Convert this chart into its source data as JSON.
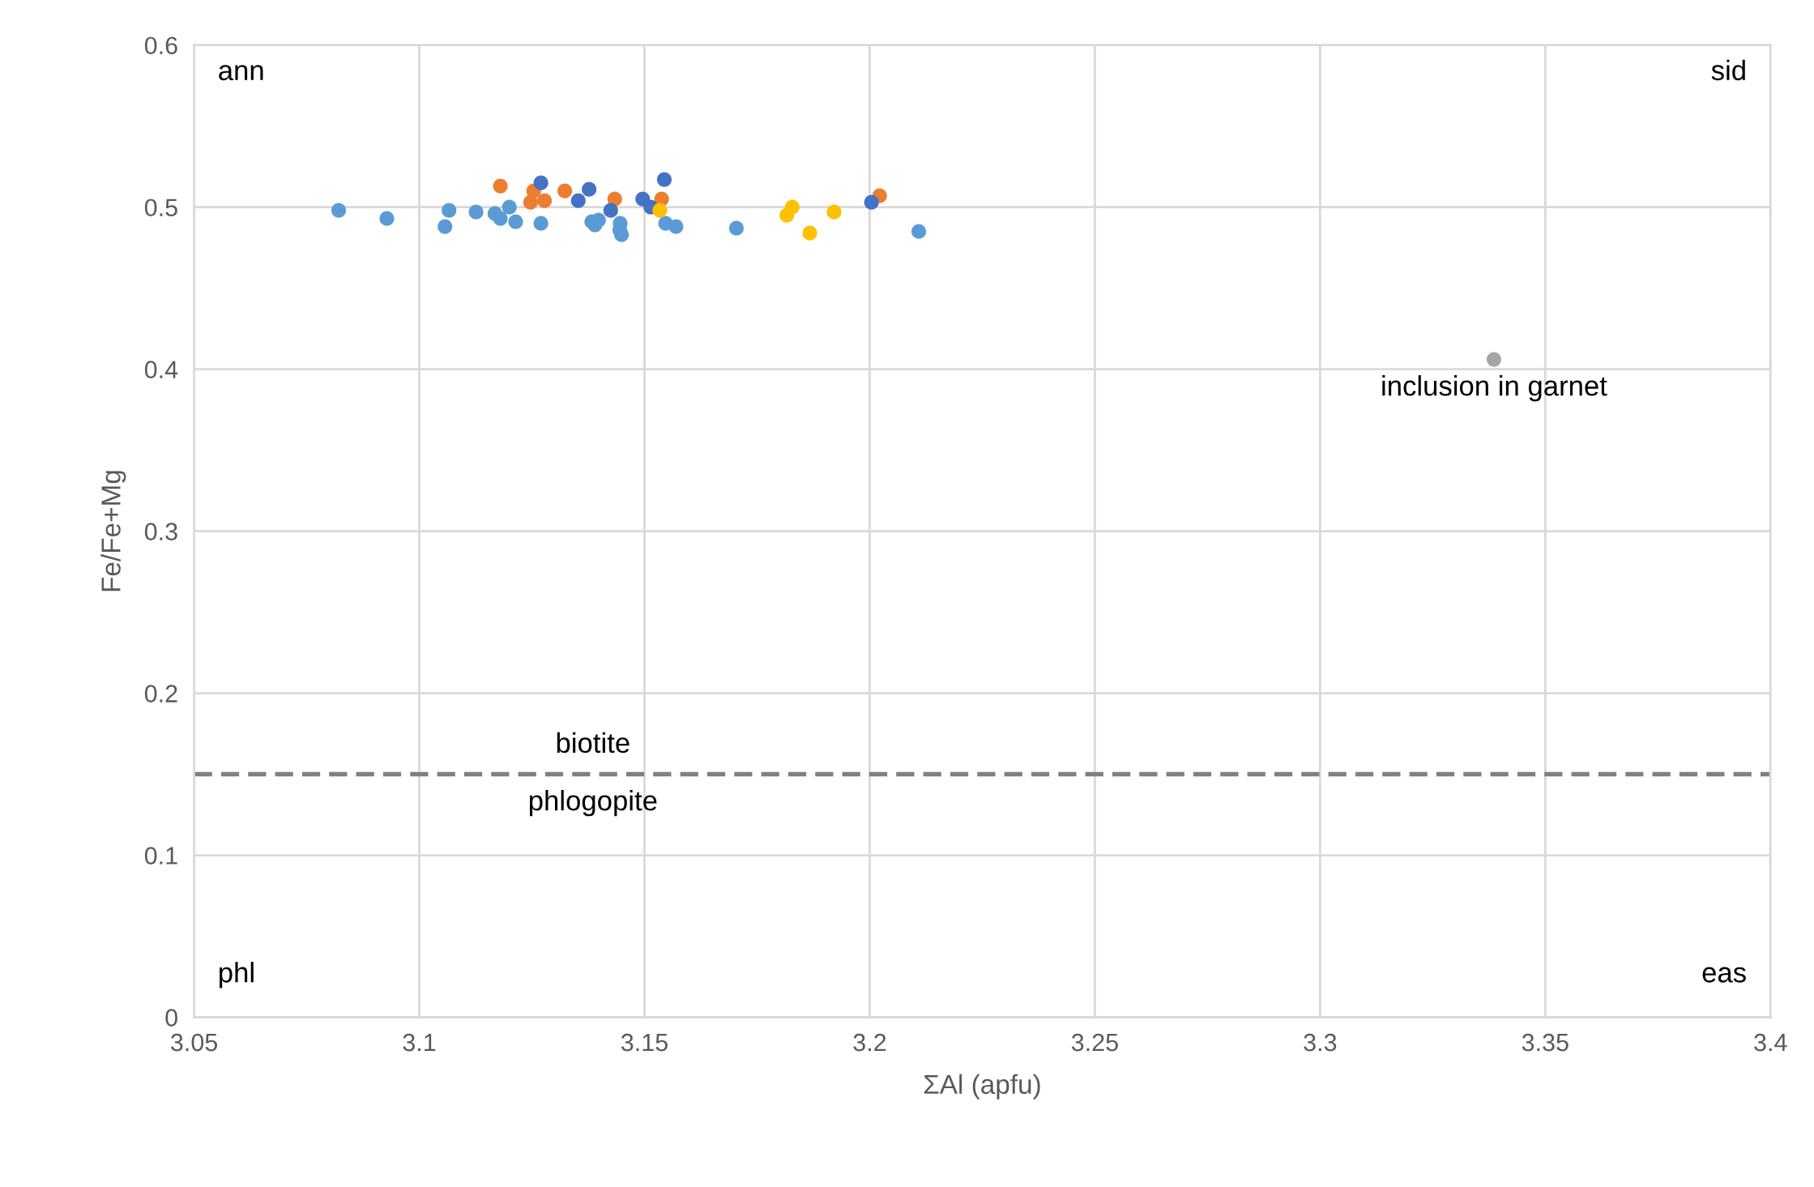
{
  "chart_data": {
    "type": "scatter",
    "xlabel": "ΣAl (apfu)",
    "ylabel": "Fe/Fe+Mg",
    "xlim": [
      3.05,
      3.4
    ],
    "ylim": [
      0,
      0.6
    ],
    "xticks": [
      3.05,
      3.1,
      3.15,
      3.2,
      3.25,
      3.3,
      3.35,
      3.4
    ],
    "yticks": [
      0,
      0.1,
      0.2,
      0.3,
      0.4,
      0.5,
      0.6
    ],
    "grid": true,
    "marker": "circle",
    "series": [
      {
        "color": "#5b9bd5",
        "x": [
          3.0821,
          3.0928,
          3.1066,
          3.1057,
          3.1126,
          3.1168,
          3.118,
          3.12,
          3.1214,
          3.127,
          3.1383,
          3.1398,
          3.139,
          3.1446,
          3.1449,
          3.1445,
          3.1547,
          3.157,
          3.1704,
          3.2109
        ],
        "values": [
          0.498,
          0.493,
          0.498,
          0.488,
          0.497,
          0.496,
          0.493,
          0.5,
          0.491,
          0.49,
          0.491,
          0.492,
          0.489,
          0.49,
          0.483,
          0.486,
          0.49,
          0.488,
          0.487,
          0.485
        ]
      },
      {
        "color": "#ed7d31",
        "x": [
          3.118,
          3.1254,
          3.1247,
          3.1278,
          3.1323,
          3.1434,
          3.1538,
          3.2022
        ],
        "values": [
          0.513,
          0.51,
          0.503,
          0.504,
          0.51,
          0.505,
          0.505,
          0.507
        ]
      },
      {
        "color": "#4472c4",
        "x": [
          3.127,
          3.1353,
          3.1377,
          3.1425,
          3.1496,
          3.1514,
          3.1544,
          3.2004
        ],
        "values": [
          0.515,
          0.504,
          0.511,
          0.498,
          0.505,
          0.5,
          0.517,
          0.503
        ]
      },
      {
        "color": "#ffc000",
        "x": [
          3.1534,
          3.1828,
          3.1816,
          3.1921,
          3.1867
        ],
        "values": [
          0.498,
          0.5,
          0.495,
          0.497,
          0.484
        ]
      },
      {
        "color": "#a5a5a5",
        "x": [
          3.3386
        ],
        "values": [
          0.406
        ]
      }
    ],
    "ref_lines": [
      {
        "axis": "y",
        "value": 0.15,
        "color": "#808080",
        "line_style": "dashed",
        "label": "biotite"
      }
    ],
    "annotations": [
      "ann",
      "sid",
      "phl",
      "eas",
      "phlogopite",
      {
        "text": "inclusion in garnet",
        "x": 3.3386,
        "y": 0.406
      }
    ]
  }
}
